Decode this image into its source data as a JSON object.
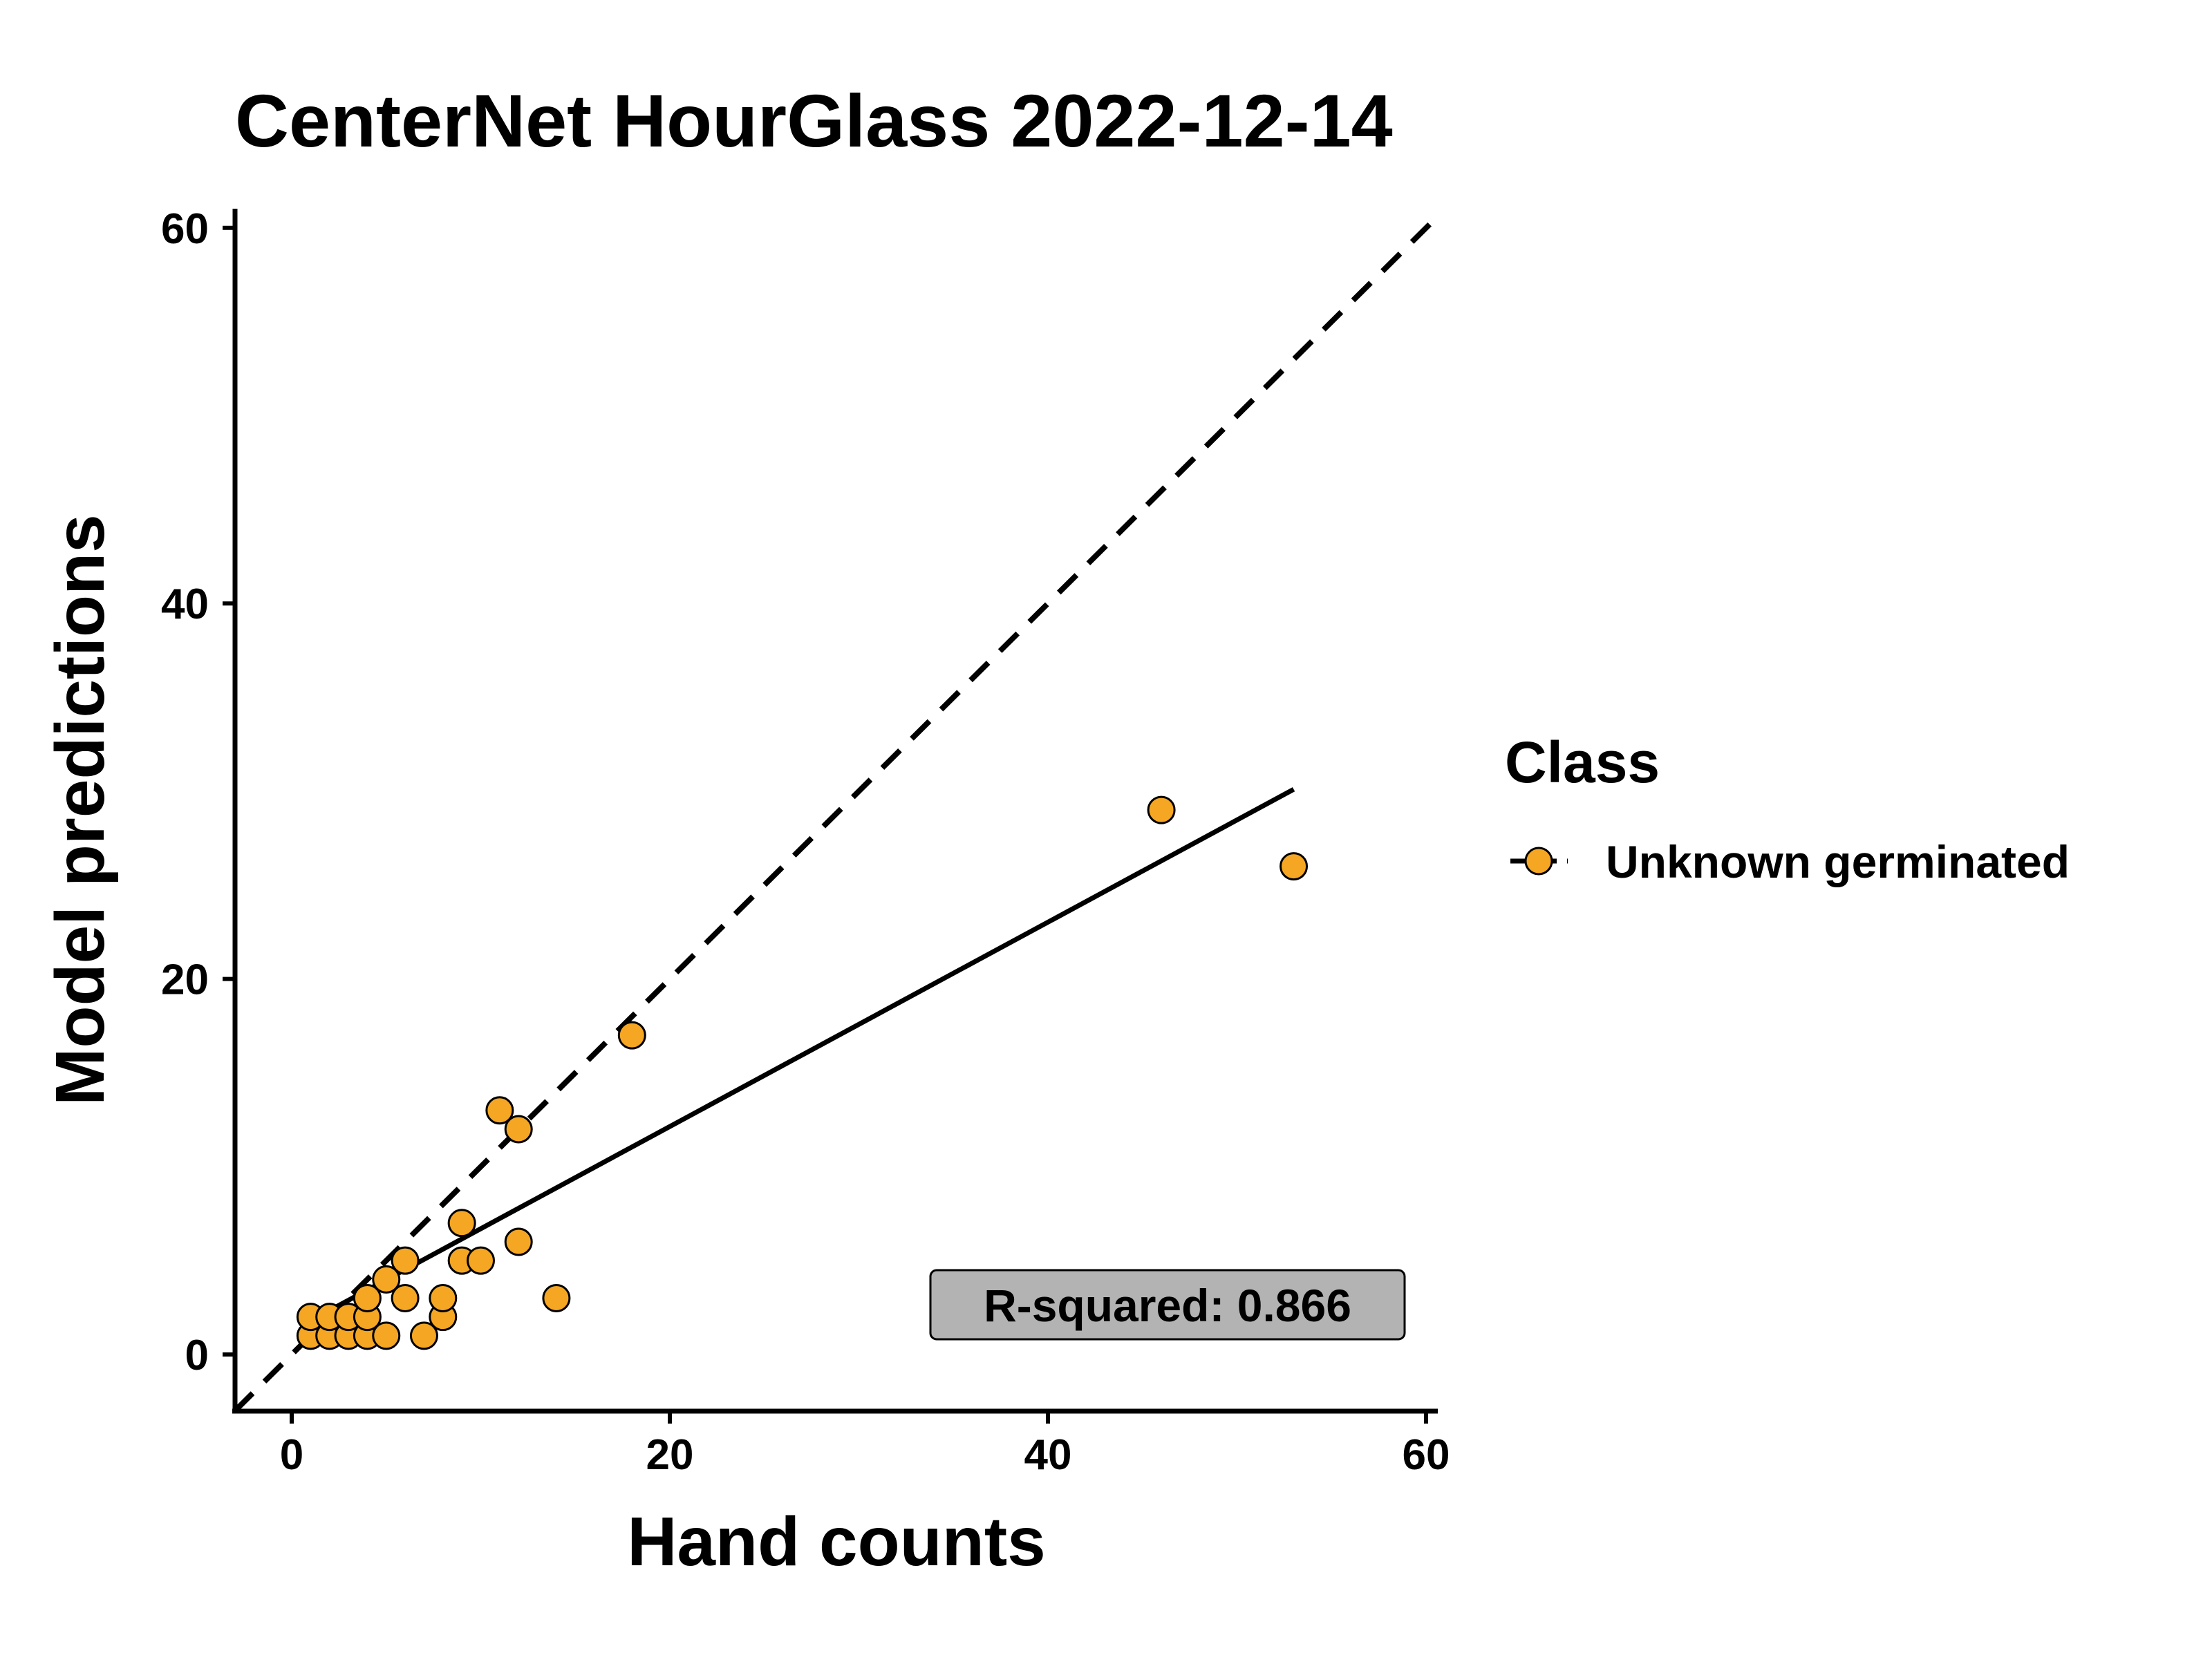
{
  "chart_data": {
    "type": "scatter",
    "title": "CenterNet HourGlass 2022-12-14",
    "xlabel": "Hand counts",
    "ylabel": "Model predictions",
    "xlim": [
      -3,
      60.5
    ],
    "ylim": [
      -3,
      60.5
    ],
    "x_ticks": [
      0,
      20,
      40,
      60
    ],
    "y_ticks": [
      0,
      20,
      40,
      60
    ],
    "grid": false,
    "legend": {
      "title": "Class",
      "placement": "right",
      "entries": [
        {
          "label": "Unknown germinated",
          "color": "#f5a623"
        }
      ]
    },
    "series": [
      {
        "name": "Unknown germinated",
        "color": "#f5a623",
        "points": [
          [
            1,
            1
          ],
          [
            1,
            2
          ],
          [
            2,
            1
          ],
          [
            2,
            2
          ],
          [
            3,
            1
          ],
          [
            3,
            2
          ],
          [
            4,
            1
          ],
          [
            4,
            2
          ],
          [
            4,
            3
          ],
          [
            5,
            1
          ],
          [
            5,
            4
          ],
          [
            6,
            3
          ],
          [
            6,
            5
          ],
          [
            7,
            1
          ],
          [
            8,
            2
          ],
          [
            8,
            3
          ],
          [
            9,
            5
          ],
          [
            9,
            7
          ],
          [
            10,
            5
          ],
          [
            11,
            13
          ],
          [
            12,
            6
          ],
          [
            12,
            12
          ],
          [
            14,
            3
          ],
          [
            18,
            17
          ],
          [
            46,
            29
          ],
          [
            53,
            26
          ]
        ]
      }
    ],
    "reference_line": {
      "style": "dashed",
      "from": [
        -3,
        -3
      ],
      "to": [
        61,
        61
      ]
    },
    "fit_line": {
      "style": "solid",
      "from": [
        1,
        1.8
      ],
      "to": [
        53,
        30.1
      ]
    },
    "annotation": {
      "text": "R-squared: 0.866",
      "background": "#b3b3b3"
    }
  }
}
